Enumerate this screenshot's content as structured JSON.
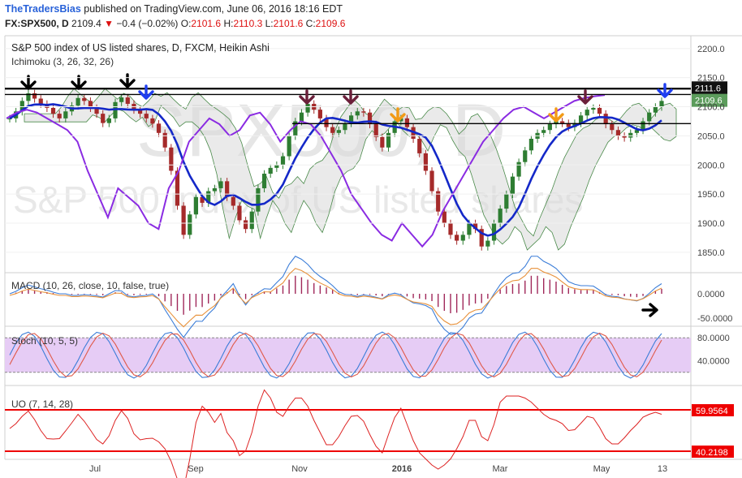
{
  "header": {
    "publisher": "TheTradersBias",
    "published_text": "published on TradingView.com, June 06, 2016 18:16 EDT",
    "symbol": "FX:SPX500, D",
    "last": "2109.4",
    "change": "−0.4 (−0.02%)",
    "o_label": "O:",
    "o_value": "2101.6",
    "h_label": "H:",
    "h_value": "2110.3",
    "l_label": "L:",
    "l_value": "2101.6",
    "c_label": "C:",
    "c_value": "2109.6"
  },
  "colors": {
    "up": "#2e7d32",
    "down": "#a52a2a",
    "ichimoku_base": "#1428c8",
    "chikou": "#8a2be2",
    "macd": "#3b7dd8",
    "signal": "#e8913a",
    "stoch_k": "#3b7dd8",
    "stoch_d": "#e05a4a",
    "uo": "#d22",
    "level": "#e00"
  },
  "chart_data": [
    {
      "type": "candlestick",
      "title": "S&P 500 index of US listed shares, D, FXCM, Heikin Ashi",
      "indicator_label": "Ichimoku (3, 26, 32, 26)",
      "watermark_symbol": "SPX500, D",
      "watermark_name": "S&P 500 index of US listed shares",
      "y_ticks": [
        "2200.0",
        "2150.0",
        "2100.0",
        "2050.0",
        "2000.0",
        "1950.0",
        "1900.0",
        "1850.0"
      ],
      "y_tick_values": [
        2200,
        2150,
        2100,
        2050,
        2000,
        1950,
        1900,
        1850
      ],
      "ylim": [
        1815,
        2222
      ],
      "x_ticks": [
        "Jul",
        "Sep",
        "Nov",
        "2016",
        "Mar",
        "May",
        "13"
      ],
      "last_price_label": "2111.6",
      "current_price_label": "2109.6",
      "horizontal_levels": [
        2131,
        2121,
        2071
      ],
      "close_series": [
        2080,
        2092,
        2110,
        2123,
        2114,
        2105,
        2098,
        2088,
        2080,
        2092,
        2102,
        2115,
        2110,
        2098,
        2088,
        2072,
        2080,
        2108,
        2116,
        2105,
        2095,
        2088,
        2080,
        2071,
        2055,
        2030,
        1990,
        1930,
        1880,
        1915,
        1945,
        1935,
        1955,
        1960,
        1972,
        1945,
        1930,
        1905,
        1890,
        1920,
        1960,
        1985,
        1995,
        2000,
        2015,
        2050,
        2075,
        2090,
        2105,
        2095,
        2080,
        2065,
        2055,
        2060,
        2072,
        2085,
        2092,
        2090,
        2070,
        2048,
        2030,
        2055,
        2075,
        2080,
        2065,
        2045,
        2020,
        1990,
        1955,
        1920,
        1900,
        1880,
        1870,
        1880,
        1900,
        1890,
        1860,
        1870,
        1900,
        1925,
        1950,
        1980,
        2005,
        2025,
        2045,
        2055,
        2060,
        2070,
        2075,
        2072,
        2065,
        2072,
        2085,
        2095,
        2098,
        2088,
        2070,
        2060,
        2050,
        2047,
        2055,
        2060,
        2075,
        2090,
        2100,
        2110
      ],
      "chikou_series": [
        2080,
        2090,
        2095,
        2090,
        2080,
        2070,
        2060,
        2040,
        1990,
        1950,
        1910,
        1960,
        1945,
        1930,
        1900,
        1890,
        1960,
        1990,
        2040,
        2060,
        2080,
        2070,
        2050,
        2060,
        2085,
        2090,
        2070,
        2040,
        2060,
        2075,
        2070,
        2050,
        2020,
        1990,
        1950,
        1925,
        1900,
        1880,
        1870,
        1900,
        1880,
        1860,
        1880,
        1920,
        1950,
        1980,
        2010,
        2040,
        2060,
        2080,
        2095,
        2100,
        2090,
        2080,
        2090,
        2100,
        2110,
        2115,
        2118,
        2120
      ]
    },
    {
      "type": "line",
      "title": "MACD (10, 26, close, 10, false, true)",
      "y_ticks": [
        "0.0000",
        "-50.0000"
      ],
      "series": []
    },
    {
      "type": "line",
      "title": "Stoch (10, 5, 5)",
      "y_ticks": [
        "80.0000",
        "40.0000"
      ],
      "band": [
        20,
        80
      ],
      "series": []
    },
    {
      "type": "line",
      "title": "UO (7, 14, 28)",
      "levels": [
        "59.9564",
        "40.2198"
      ],
      "series": []
    }
  ]
}
